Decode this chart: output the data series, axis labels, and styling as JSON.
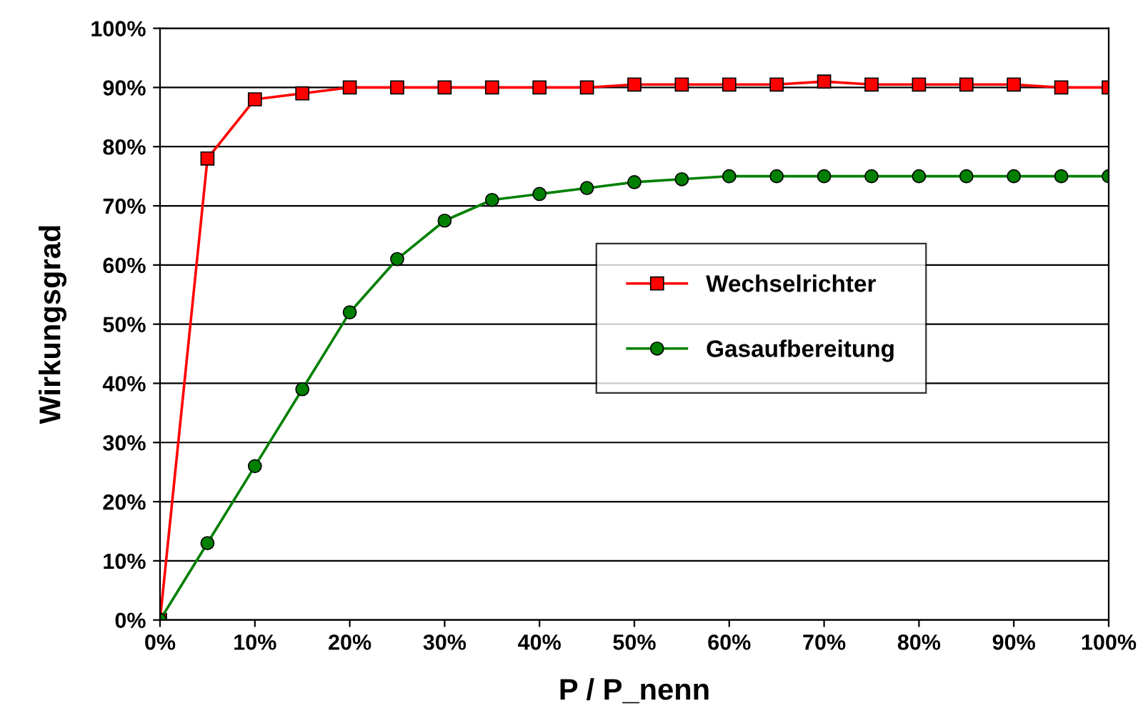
{
  "chart_data": {
    "type": "line",
    "xlabel": "P / P_nenn",
    "ylabel": "Wirkungsgrad",
    "x": [
      0,
      5,
      10,
      15,
      20,
      25,
      30,
      35,
      40,
      45,
      50,
      55,
      60,
      65,
      70,
      75,
      80,
      85,
      90,
      95,
      100
    ],
    "series": [
      {
        "name": "Wechselrichter",
        "color": "#ff0000",
        "marker": "square",
        "values": [
          0,
          78,
          88,
          89,
          90,
          90,
          90,
          90,
          90,
          90,
          90.5,
          90.5,
          90.5,
          90.5,
          91,
          90.5,
          90.5,
          90.5,
          90.5,
          90,
          90
        ]
      },
      {
        "name": "Gasaufbereitung",
        "color": "#008000",
        "marker": "circle",
        "values": [
          0,
          13,
          26,
          39,
          52,
          61,
          67.5,
          71,
          72,
          73,
          74,
          74.5,
          75,
          75,
          75,
          75,
          75,
          75,
          75,
          75,
          75
        ]
      }
    ],
    "xlim": [
      0,
      100
    ],
    "ylim": [
      0,
      100
    ],
    "xticks": [
      {
        "value": 0,
        "label": "0%"
      },
      {
        "value": 10,
        "label": "10%"
      },
      {
        "value": 20,
        "label": "20%"
      },
      {
        "value": 30,
        "label": "30%"
      },
      {
        "value": 40,
        "label": "40%"
      },
      {
        "value": 50,
        "label": "50%"
      },
      {
        "value": 60,
        "label": "60%"
      },
      {
        "value": 70,
        "label": "70%"
      },
      {
        "value": 80,
        "label": "80%"
      },
      {
        "value": 90,
        "label": "90%"
      },
      {
        "value": 100,
        "label": "100%"
      }
    ],
    "yticks": [
      {
        "value": 0,
        "label": "0%"
      },
      {
        "value": 10,
        "label": "10%"
      },
      {
        "value": 20,
        "label": "20%"
      },
      {
        "value": 30,
        "label": "30%"
      },
      {
        "value": 40,
        "label": "40%"
      },
      {
        "value": 50,
        "label": "50%"
      },
      {
        "value": 60,
        "label": "60%"
      },
      {
        "value": 70,
        "label": "70%"
      },
      {
        "value": 80,
        "label": "80%"
      },
      {
        "value": 90,
        "label": "90%"
      },
      {
        "value": 100,
        "label": "100%"
      }
    ],
    "grid": "y",
    "legend": "center right",
    "line_style": "solid"
  }
}
